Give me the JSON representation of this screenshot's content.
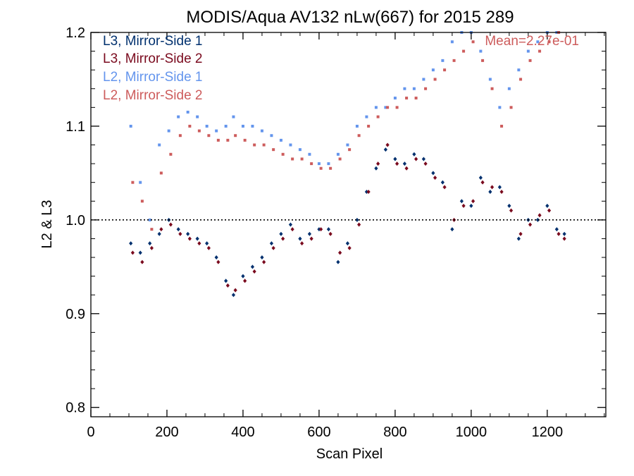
{
  "chart_data": {
    "type": "scatter",
    "title": "MODIS/Aqua AV132 nLw(667) for 2015 289",
    "xlabel": "Scan Pixel",
    "ylabel": "L2 & L3",
    "xlim": [
      0,
      1354
    ],
    "ylim": [
      0.79,
      1.2
    ],
    "xticks": [
      0,
      200,
      400,
      600,
      800,
      1000,
      1200
    ],
    "xtick_labels": [
      "0",
      "200",
      "400",
      "600",
      "800",
      "1000",
      "1200"
    ],
    "yticks": [
      0.8,
      0.9,
      1.0,
      1.1,
      1.2
    ],
    "ytick_labels": [
      "0.8",
      "0.9",
      "1.0",
      "1.1",
      "1.2"
    ],
    "reference_line": 1.0,
    "annotation": "Mean=2.27e-01",
    "annotation_color": "#cd5c5c",
    "legend_position": "top-left",
    "series": [
      {
        "name": "L3, Mirror-Side 1",
        "color": "#00306e",
        "marker": "diamond",
        "x": [
          105,
          130,
          155,
          180,
          205,
          230,
          255,
          280,
          305,
          330,
          355,
          375,
          400,
          425,
          450,
          475,
          500,
          525,
          550,
          575,
          600,
          625,
          650,
          675,
          700,
          725,
          750,
          775,
          800,
          825,
          850,
          875,
          900,
          925,
          950,
          975,
          1000,
          1025,
          1050,
          1075,
          1100,
          1125,
          1150,
          1175,
          1200,
          1225,
          1245
        ],
        "y": [
          0.975,
          0.965,
          0.975,
          0.985,
          1.0,
          0.99,
          0.985,
          0.98,
          0.975,
          0.96,
          0.935,
          0.92,
          0.94,
          0.95,
          0.96,
          0.975,
          0.985,
          0.995,
          0.98,
          0.985,
          0.99,
          0.99,
          0.955,
          0.975,
          1.0,
          1.03,
          1.055,
          1.075,
          1.065,
          1.06,
          1.07,
          1.065,
          1.05,
          1.04,
          0.99,
          1.02,
          1.015,
          1.045,
          1.03,
          1.035,
          1.015,
          0.98,
          1.0,
          1.0,
          1.015,
          0.99,
          0.985
        ]
      },
      {
        "name": "L3, Mirror-Side 2",
        "color": "#7a0a1e",
        "marker": "diamond",
        "x": [
          110,
          135,
          160,
          185,
          210,
          235,
          260,
          285,
          310,
          335,
          360,
          380,
          405,
          430,
          455,
          480,
          505,
          530,
          555,
          580,
          605,
          630,
          655,
          680,
          705,
          730,
          755,
          780,
          805,
          830,
          855,
          880,
          905,
          930,
          955,
          980,
          1005,
          1030,
          1055,
          1080,
          1105,
          1130,
          1155,
          1180,
          1205,
          1230,
          1245
        ],
        "y": [
          0.965,
          0.955,
          0.97,
          0.99,
          0.995,
          0.985,
          0.98,
          0.975,
          0.97,
          0.955,
          0.93,
          0.925,
          0.935,
          0.945,
          0.955,
          0.97,
          0.98,
          0.99,
          0.975,
          0.98,
          0.99,
          0.985,
          0.965,
          0.97,
          0.995,
          1.03,
          1.06,
          1.08,
          1.06,
          1.055,
          1.065,
          1.06,
          1.045,
          1.035,
          1.0,
          1.015,
          1.02,
          1.04,
          1.035,
          1.03,
          1.01,
          0.985,
          0.995,
          1.005,
          1.01,
          0.985,
          0.98
        ]
      },
      {
        "name": "L2, Mirror-Side 1",
        "color": "#6495ed",
        "marker": "square",
        "x": [
          105,
          130,
          155,
          180,
          205,
          230,
          255,
          280,
          305,
          330,
          355,
          375,
          400,
          425,
          450,
          475,
          500,
          525,
          550,
          575,
          600,
          625,
          650,
          675,
          700,
          725,
          750,
          775,
          800,
          825,
          850,
          875,
          900,
          925,
          950,
          975,
          1000,
          1025,
          1050,
          1075,
          1100,
          1125,
          1150,
          1175,
          1200,
          1225
        ],
        "y": [
          1.1,
          1.04,
          1.0,
          1.08,
          1.095,
          1.11,
          1.115,
          1.11,
          1.1,
          1.095,
          1.1,
          1.11,
          1.1,
          1.1,
          1.095,
          1.09,
          1.085,
          1.08,
          1.075,
          1.07,
          1.06,
          1.06,
          1.07,
          1.08,
          1.1,
          1.11,
          1.12,
          1.12,
          1.13,
          1.14,
          1.14,
          1.15,
          1.16,
          1.17,
          1.19,
          1.2,
          1.2,
          1.18,
          1.15,
          1.12,
          1.14,
          1.16,
          1.18,
          1.19,
          1.2,
          1.2
        ]
      },
      {
        "name": "L2, Mirror-Side 2",
        "color": "#cd5c5c",
        "marker": "square",
        "x": [
          110,
          135,
          160,
          185,
          210,
          235,
          260,
          285,
          310,
          335,
          360,
          380,
          405,
          430,
          455,
          480,
          505,
          530,
          555,
          580,
          605,
          630,
          655,
          680,
          705,
          730,
          755,
          780,
          805,
          830,
          855,
          880,
          905,
          930,
          955,
          980,
          1005,
          1030,
          1055,
          1080,
          1105,
          1130,
          1155,
          1180,
          1205,
          1230
        ],
        "y": [
          1.04,
          1.02,
          0.99,
          1.05,
          1.07,
          1.09,
          1.1,
          1.095,
          1.09,
          1.085,
          1.085,
          1.09,
          1.085,
          1.08,
          1.08,
          1.075,
          1.07,
          1.065,
          1.065,
          1.06,
          1.055,
          1.055,
          1.065,
          1.075,
          1.09,
          1.1,
          1.11,
          1.12,
          1.12,
          1.13,
          1.13,
          1.14,
          1.15,
          1.16,
          1.17,
          1.18,
          1.19,
          1.17,
          1.14,
          1.1,
          1.12,
          1.15,
          1.17,
          1.18,
          1.19,
          1.2
        ]
      }
    ]
  }
}
